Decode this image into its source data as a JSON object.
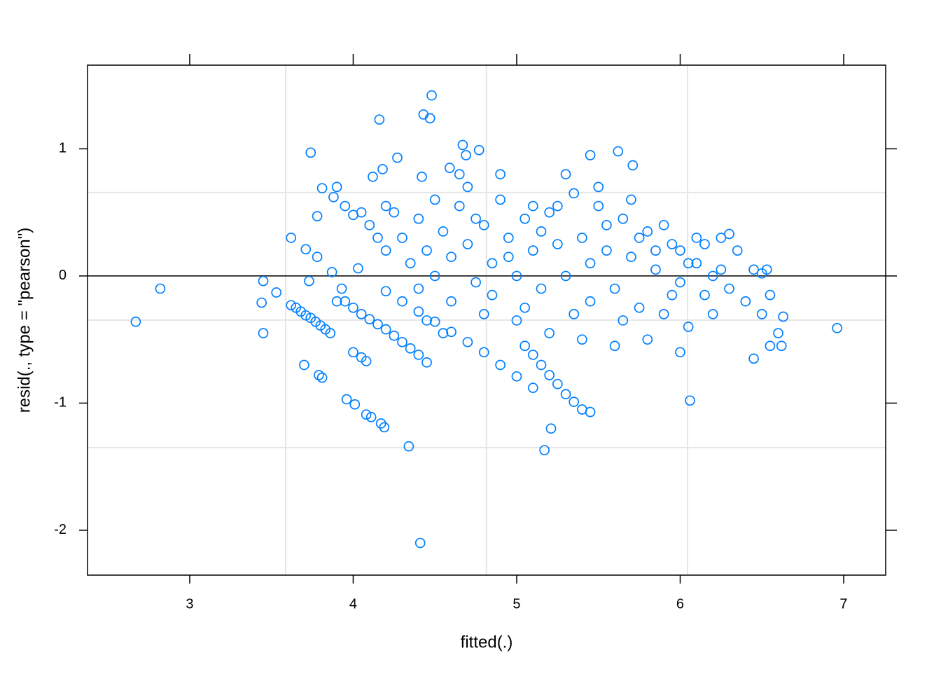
{
  "chart_data": {
    "type": "scatter",
    "x_label": "fitted(.)",
    "y_label": "resid(., type = \"pearson\")",
    "color": "#0080ff",
    "xlim": [
      2.375,
      7.257
    ],
    "ylim": [
      -2.353,
      1.658
    ],
    "xticks": [
      3,
      4,
      5,
      6,
      7
    ],
    "yticks": [
      -2,
      -1,
      0,
      1
    ],
    "xgrid": [
      3.587,
      4.815,
      6.045
    ],
    "ygrid": [
      -1.35,
      -0.347,
      0.656
    ],
    "hline": 0,
    "x": [
      2.67,
      2.82,
      3.62,
      3.74,
      3.45,
      3.44,
      3.45,
      3.53,
      3.71,
      3.73,
      3.78,
      3.78,
      3.81,
      3.7,
      3.79,
      3.81,
      3.96,
      4.01,
      4.08,
      4.11,
      4.17,
      4.19,
      4.34,
      4.41,
      4.16,
      4.48,
      4.43,
      4.47,
      4.27,
      5.17,
      5.21,
      6.06,
      6.96,
      4.67,
      4.69,
      4.77,
      5.62,
      5.71,
      5.45,
      4.59,
      4.42,
      3.62,
      3.65,
      3.68,
      3.71,
      3.74,
      3.77,
      3.8,
      3.83,
      3.86,
      3.95,
      4.0,
      4.05,
      4.1,
      4.15,
      4.2,
      4.25,
      4.3,
      4.35,
      4.4,
      4.45,
      4.2,
      4.3,
      4.4,
      4.5,
      4.6,
      4.7,
      4.8,
      4.9,
      5.0,
      5.1,
      4.0,
      4.05,
      4.08,
      5.05,
      5.1,
      5.15,
      5.2,
      5.25,
      5.3,
      5.35,
      5.4,
      5.45,
      6.0,
      6.1,
      6.2,
      6.3,
      6.4,
      6.5,
      6.6,
      6.62,
      6.55,
      6.45,
      6.25,
      6.35,
      6.45,
      6.55,
      6.63,
      6.3,
      6.5,
      6.53,
      4.3,
      4.35,
      4.4,
      4.45,
      4.5,
      4.55,
      4.6,
      4.65,
      4.7,
      4.75,
      4.8,
      4.85,
      4.9,
      4.95,
      5.0,
      5.05,
      5.1,
      5.15,
      5.2,
      5.25,
      5.3,
      5.35,
      5.4,
      5.45,
      5.5,
      5.55,
      5.6,
      5.65,
      5.7,
      5.75,
      5.8,
      5.85,
      5.9,
      5.95,
      6.0,
      6.05,
      6.1,
      6.15,
      4.25,
      4.4,
      4.5,
      4.6,
      4.7,
      4.8,
      4.9,
      5.0,
      5.1,
      5.2,
      5.3,
      5.4,
      5.5,
      5.6,
      5.7,
      5.8,
      5.9,
      6.0,
      4.45,
      4.55,
      4.65,
      4.75,
      4.85,
      4.95,
      5.05,
      5.15,
      5.25,
      5.35,
      5.45,
      5.55,
      5.65,
      5.75,
      5.85,
      5.95,
      6.05,
      6.15,
      6.2,
      6.25,
      4.1,
      4.15,
      4.2,
      4.05,
      3.9,
      3.95,
      3.88,
      4.0,
      4.03,
      3.87,
      3.9,
      3.93,
      4.2,
      4.18,
      4.12
    ],
    "values": [
      -0.36,
      -0.1,
      0.3,
      0.97,
      -0.04,
      -0.21,
      -0.45,
      -0.13,
      0.21,
      -0.04,
      0.15,
      0.47,
      0.69,
      -0.7,
      -0.78,
      -0.8,
      -0.97,
      -1.01,
      -1.09,
      -1.11,
      -1.16,
      -1.19,
      -1.34,
      -2.1,
      1.23,
      1.42,
      1.27,
      1.24,
      0.93,
      -1.37,
      -1.2,
      -0.98,
      -0.41,
      1.03,
      0.95,
      0.99,
      0.98,
      0.87,
      0.95,
      0.85,
      0.78,
      -0.23,
      -0.25,
      -0.28,
      -0.31,
      -0.33,
      -0.36,
      -0.39,
      -0.42,
      -0.45,
      -0.2,
      -0.25,
      -0.3,
      -0.34,
      -0.38,
      -0.42,
      -0.47,
      -0.52,
      -0.57,
      -0.62,
      -0.68,
      -0.12,
      -0.2,
      -0.28,
      -0.36,
      -0.44,
      -0.52,
      -0.6,
      -0.7,
      -0.79,
      -0.88,
      -0.6,
      -0.64,
      -0.67,
      -0.55,
      -0.62,
      -0.7,
      -0.78,
      -0.85,
      -0.93,
      -0.99,
      -1.05,
      -1.07,
      0.2,
      0.1,
      0,
      -0.1,
      -0.2,
      -0.3,
      -0.45,
      -0.55,
      -0.55,
      -0.65,
      0.3,
      0.2,
      0.05,
      -0.15,
      -0.32,
      0.33,
      0.02,
      0.05,
      0.3,
      0.1,
      0.45,
      0.2,
      0,
      0.35,
      0.15,
      0.55,
      0.25,
      -0.05,
      0.4,
      0.1,
      0.6,
      0.3,
      0,
      0.45,
      0.2,
      -0.1,
      0.5,
      0.25,
      0,
      0.65,
      0.3,
      -0.2,
      0.55,
      0.2,
      -0.1,
      0.45,
      0.15,
      -0.25,
      0.35,
      0.05,
      -0.3,
      0.25,
      -0.05,
      -0.4,
      0.3,
      -0.15,
      0.5,
      -0.1,
      0.6,
      -0.2,
      0.7,
      -0.3,
      0.8,
      -0.35,
      0.55,
      -0.45,
      0.8,
      -0.5,
      0.7,
      -0.55,
      0.6,
      -0.5,
      0.4,
      -0.6,
      -0.35,
      -0.45,
      0.8,
      0.45,
      -0.15,
      0.15,
      -0.25,
      0.35,
      0.55,
      -0.3,
      0.1,
      0.4,
      -0.35,
      0.3,
      0.2,
      -0.15,
      0.1,
      0.25,
      -0.3,
      0.05,
      0.4,
      0.3,
      0.2,
      0.5,
      0.7,
      0.55,
      0.62,
      0.48,
      0.06,
      0.03,
      -0.2,
      -0.1,
      0.55,
      0.84,
      0.78
    ]
  }
}
